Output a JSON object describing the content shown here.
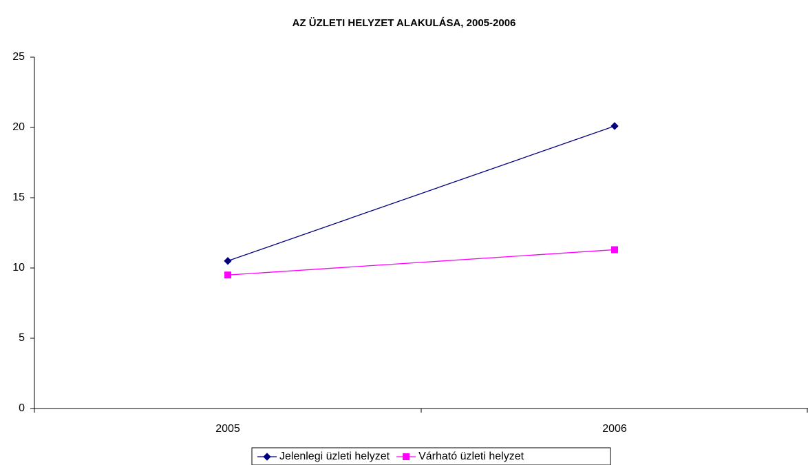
{
  "chart_data": {
    "type": "line",
    "title": "AZ ÜZLETI HELYZET ALAKULÁSA, 2005-2006",
    "categories": [
      "2005",
      "2006"
    ],
    "series": [
      {
        "name": "Jelenlegi üzleti helyzet",
        "color": "#000080",
        "marker": "diamond",
        "values": [
          10.5,
          20.1
        ]
      },
      {
        "name": "Várható üzleti helyzet",
        "color": "#ff00ff",
        "marker": "square",
        "values": [
          9.5,
          11.3
        ]
      }
    ],
    "ylim": [
      0,
      25
    ],
    "yticks": [
      0,
      5,
      10,
      15,
      20,
      25
    ],
    "grid": false,
    "legend": "bottom"
  }
}
